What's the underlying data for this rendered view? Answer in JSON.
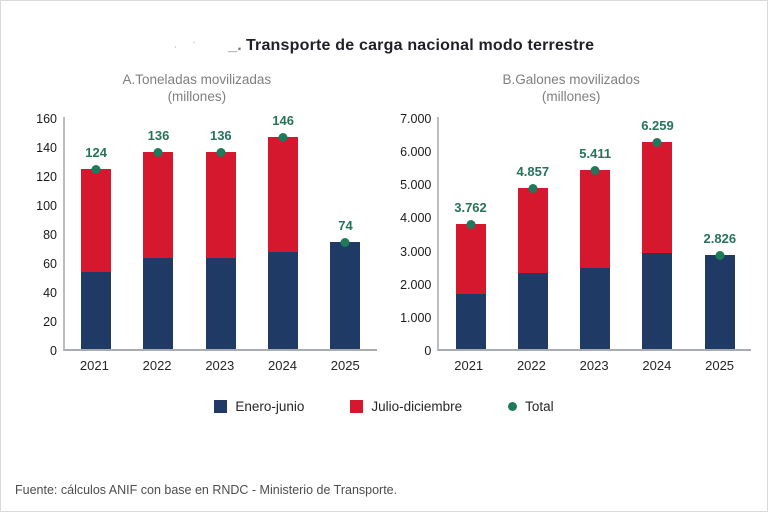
{
  "title": {
    "prefix_marks": "· ´",
    "dash": "_.",
    "text": "Transporte de carga nacional modo terrestre"
  },
  "legend": {
    "items": [
      {
        "label": "Enero-junio",
        "color": "#1f3a64",
        "shape": "square"
      },
      {
        "label": "Julio-diciembre",
        "color": "#d5182e",
        "shape": "square"
      },
      {
        "label": "Total",
        "color": "#1e7a5a",
        "shape": "dot"
      }
    ]
  },
  "footer": {
    "source": "Fuente: cálculos ANIF con base en RNDC - Ministerio de Transporte."
  },
  "colors": {
    "navy": "#1f3a64",
    "red": "#d5182e",
    "dot_green": "#1e7a5a",
    "label_green": "#26735c",
    "axis": "#a9adb2",
    "subtitle_gray": "#7f7f7f"
  },
  "chart_data": [
    {
      "type": "bar",
      "stacked": true,
      "title": "A.Toneladas movilizadas",
      "subtitle": "(millones)",
      "categories": [
        "2021",
        "2022",
        "2023",
        "2024",
        "2025"
      ],
      "series": [
        {
          "name": "Enero-junio",
          "color": "#1f3a64",
          "values": [
            53,
            63,
            63,
            67,
            74
          ]
        },
        {
          "name": "Julio-diciembre",
          "color": "#d5182e",
          "values": [
            71,
            73,
            73,
            79,
            0
          ]
        }
      ],
      "totals": [
        124,
        136,
        136,
        146,
        74
      ],
      "total_labels": [
        "124",
        "136",
        "136",
        "146",
        "74"
      ],
      "ylim": [
        0,
        160
      ],
      "yticks": [
        "0",
        "20",
        "40",
        "60",
        "80",
        "100",
        "120",
        "140",
        "160"
      ],
      "grid": false,
      "legend_position": "bottom-shared"
    },
    {
      "type": "bar",
      "stacked": true,
      "title": "B.Galones movilizados",
      "subtitle": "(millones)",
      "categories": [
        "2021",
        "2022",
        "2023",
        "2024",
        "2025"
      ],
      "series": [
        {
          "name": "Enero-junio",
          "color": "#1f3a64",
          "values": [
            1650,
            2300,
            2450,
            2900,
            2826
          ]
        },
        {
          "name": "Julio-diciembre",
          "color": "#d5182e",
          "values": [
            2112,
            2557,
            2961,
            3359,
            0
          ]
        }
      ],
      "totals": [
        3762,
        4857,
        5411,
        6259,
        2826
      ],
      "total_labels": [
        "3.762",
        "4.857",
        "5.411",
        "6.259",
        "2.826"
      ],
      "ylim": [
        0,
        7000
      ],
      "yticks": [
        "0",
        "1.000",
        "2.000",
        "3.000",
        "4.000",
        "5.000",
        "6.000",
        "7.000"
      ],
      "grid": false,
      "legend_position": "bottom-shared"
    }
  ]
}
